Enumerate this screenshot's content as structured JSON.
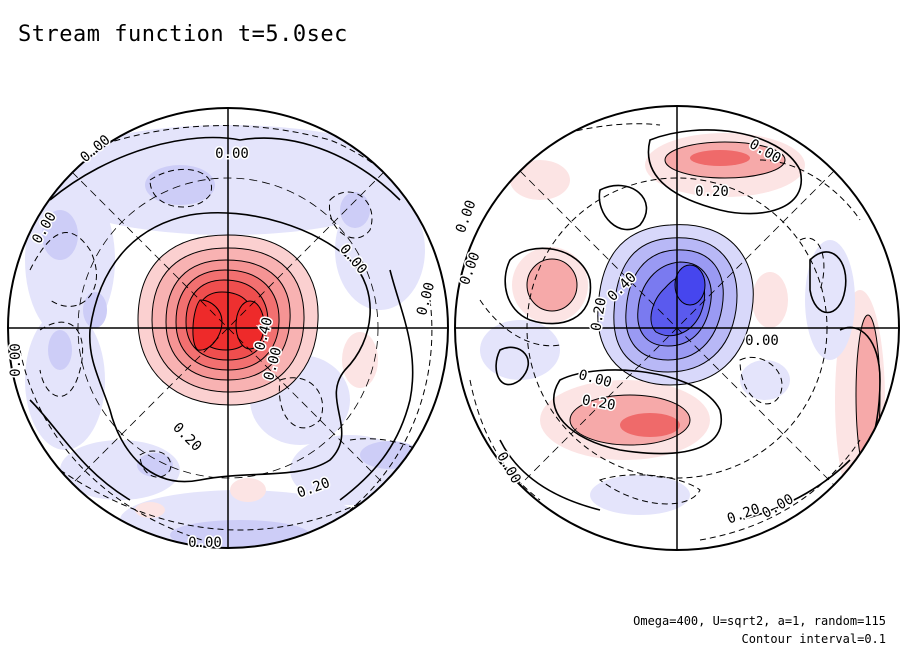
{
  "title": "Stream function t=5.0sec",
  "notes": {
    "params": "Omega=400, U=sqrt2, a=1, random=115",
    "interval": "Contour interval=0.1"
  },
  "colors": {
    "positive_strong": "#ee2a2a",
    "positive_weak": "#fbe1e1",
    "negative_strong": "#4646ee",
    "negative_weak": "#e1e1fb",
    "contour": "#000000"
  },
  "chart_data": [
    {
      "type": "heatmap",
      "panel": "left",
      "field": "stream function",
      "contour_interval": 0.1,
      "dashed_contours": "negative",
      "contour_labels": [
        "0.00",
        "0.00",
        "0.00",
        "0.00",
        "0.00",
        "0.00",
        "0.40",
        "0.00",
        "0.20",
        "0.20",
        "0.00"
      ],
      "features": [
        {
          "sign": "positive",
          "amplitude": 0.7,
          "location": "center"
        },
        {
          "sign": "negative",
          "amplitude": 0.25,
          "location": "lower edge"
        },
        {
          "sign": "negative",
          "amplitude": 0.15,
          "location": "outer ring"
        }
      ]
    },
    {
      "type": "heatmap",
      "panel": "right",
      "field": "stream function",
      "contour_interval": 0.1,
      "dashed_contours": "negative",
      "contour_labels": [
        "0.00",
        "0.20",
        "0.00",
        "0.00",
        "0.20",
        "0.40",
        "0.00",
        "0.00",
        "0.20",
        "0.00",
        "0.20",
        "0.00"
      ],
      "features": [
        {
          "sign": "negative",
          "amplitude": 0.6,
          "location": "center"
        },
        {
          "sign": "positive",
          "amplitude": 0.35,
          "location": "lower middle"
        },
        {
          "sign": "positive",
          "amplitude": 0.25,
          "location": "upper right"
        },
        {
          "sign": "positive",
          "amplitude": 0.25,
          "location": "right edge"
        },
        {
          "sign": "positive",
          "amplitude": 0.15,
          "location": "left"
        }
      ]
    }
  ]
}
